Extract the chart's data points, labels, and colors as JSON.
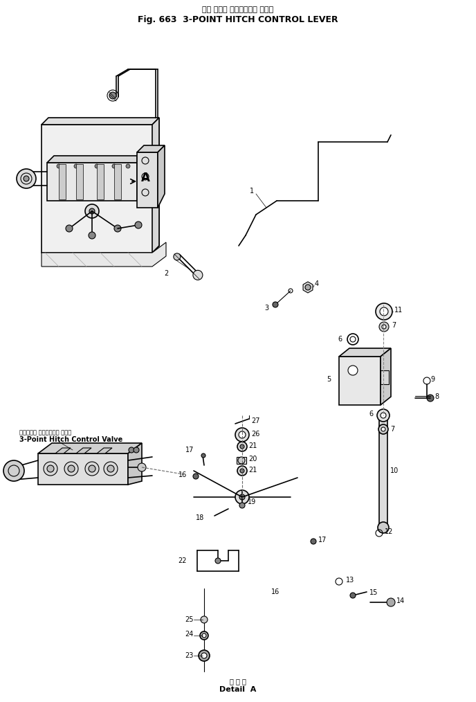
{
  "title_japanese": "３点 ヒッチ コントロール レバー",
  "title_english": "Fig. 663  3-POINT HITCH CONTROL LEVER",
  "bottom_label_japanese": "Ａ 部 詳",
  "bottom_label_english": "Detail  A",
  "background_color": "#ffffff",
  "line_color": "#000000",
  "fig_width": 6.88,
  "fig_height": 10.14,
  "dpi": 100,
  "label_A": "A",
  "valve_label_japanese": "３点ヒッチ コントロール バルブ",
  "valve_label_english": "3-Point Hitch Control Valve"
}
